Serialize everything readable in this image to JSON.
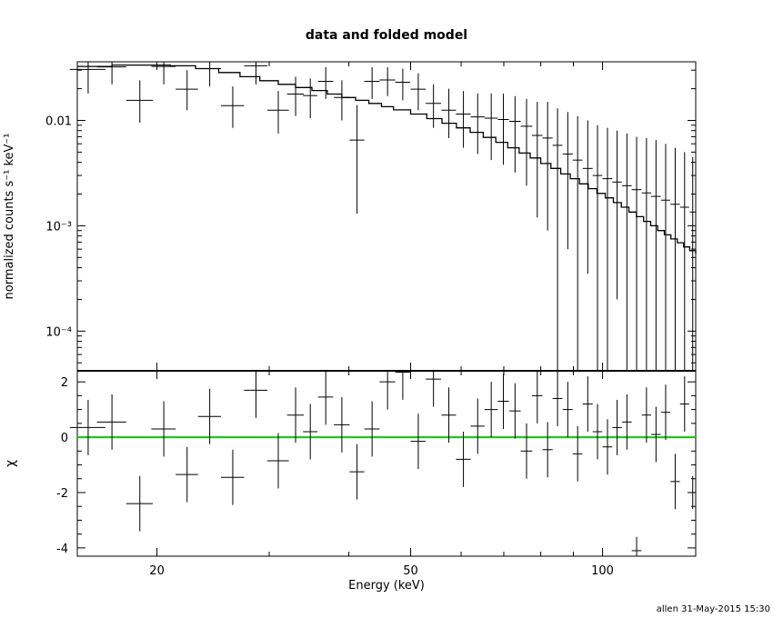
{
  "title": "data and folded model",
  "footer": "allen 31-May-2015 15:30",
  "chart_data": [
    {
      "type": "scatter",
      "panel": "top",
      "title": "data and folded model",
      "xlabel": "Energy (keV)",
      "ylabel": "normalized counts s⁻¹ keV⁻¹",
      "xscale": "log",
      "yscale": "log",
      "xlim": [
        15,
        140
      ],
      "ylim": [
        4.2e-05,
        0.036
      ],
      "yticks": [
        {
          "value": 0.01,
          "label": "0.01"
        },
        {
          "value": 0.001,
          "label": "10⁻³"
        },
        {
          "value": 0.0001,
          "label": "10⁻⁴"
        }
      ],
      "series": [
        {
          "kind": "data",
          "x": [
            15.6,
            17.0,
            18.8,
            20.5,
            22.3,
            24.2,
            26.3,
            28.6,
            31.0,
            33.0,
            34.8,
            36.8,
            39.0,
            41.2,
            43.5,
            46.0,
            48.6,
            51.4,
            54.3,
            57.4,
            60.5,
            63.7,
            66.9,
            69.9,
            72.9,
            76.0,
            79.0,
            82.0,
            85.0,
            88.2,
            91.4,
            94.8,
            98.2,
            101.8,
            105.4,
            109.2,
            113.1,
            117.2,
            121.3,
            125.6,
            130.0,
            134.5,
            138.5
          ],
          "xerr": [
            1.0,
            0.9,
            0.9,
            0.9,
            0.9,
            1.0,
            1.1,
            1.2,
            1.2,
            1.0,
            0.9,
            1.0,
            1.1,
            1.1,
            1.2,
            1.3,
            1.3,
            1.4,
            1.5,
            1.5,
            1.6,
            1.6,
            1.6,
            1.4,
            1.5,
            1.6,
            1.5,
            1.5,
            1.5,
            1.6,
            1.6,
            1.7,
            1.7,
            1.8,
            1.8,
            1.9,
            2.0,
            2.0,
            2.1,
            2.1,
            2.2,
            2.2,
            1.5
          ],
          "y": [
            0.0305,
            0.0322,
            0.0155,
            0.0325,
            0.0198,
            0.031,
            0.0138,
            0.033,
            0.0125,
            0.0178,
            0.0172,
            0.0235,
            0.0165,
            0.0065,
            0.0235,
            0.0242,
            0.023,
            0.0198,
            0.0145,
            0.0125,
            0.0115,
            0.0108,
            0.0105,
            0.0102,
            0.0098,
            0.0088,
            0.0072,
            0.0068,
            0.0058,
            0.0048,
            0.0042,
            0.0035,
            0.003,
            0.0028,
            0.0026,
            0.0024,
            0.0022,
            0.00205,
            0.0019,
            0.00175,
            0.0016,
            0.0015,
            0.00135
          ],
          "ylo": [
            0.018,
            0.022,
            0.0095,
            0.022,
            0.0125,
            0.021,
            0.0085,
            0.022,
            0.0075,
            0.011,
            0.0105,
            0.016,
            0.01,
            0.0013,
            0.016,
            0.017,
            0.0155,
            0.0125,
            0.0085,
            0.0068,
            0.0055,
            0.0048,
            0.0042,
            0.0038,
            0.0032,
            0.0024,
            0.0012,
            0.0009,
            4.2e-05,
            0.0006,
            4.2e-05,
            0.00035,
            4.2e-05,
            4.2e-05,
            0.0002,
            4.2e-05,
            4.2e-05,
            4.2e-05,
            4.2e-05,
            4.2e-05,
            4.2e-05,
            4.2e-05,
            4.2e-05
          ],
          "yhi": [
            0.043,
            0.043,
            0.024,
            0.043,
            0.03,
            0.043,
            0.021,
            0.043,
            0.019,
            0.026,
            0.025,
            0.032,
            0.024,
            0.014,
            0.032,
            0.032,
            0.031,
            0.028,
            0.022,
            0.02,
            0.019,
            0.018,
            0.018,
            0.018,
            0.017,
            0.016,
            0.015,
            0.015,
            0.013,
            0.012,
            0.011,
            0.01,
            0.009,
            0.0085,
            0.008,
            0.0075,
            0.007,
            0.0068,
            0.0065,
            0.006,
            0.0055,
            0.005,
            0.0045
          ]
        },
        {
          "kind": "model",
          "x": [
            15,
            17,
            19,
            21,
            23,
            25,
            27,
            29,
            31,
            33,
            35,
            37,
            39,
            41,
            43,
            45,
            47,
            50,
            53,
            56,
            59,
            62,
            65,
            68,
            71,
            74,
            77,
            80,
            83,
            86,
            89,
            92,
            95,
            98,
            101,
            104,
            107,
            110,
            113,
            116,
            119,
            122,
            125,
            128,
            131,
            134,
            137,
            140
          ],
          "y": [
            0.0325,
            0.0335,
            0.0335,
            0.033,
            0.031,
            0.0285,
            0.026,
            0.0238,
            0.022,
            0.0205,
            0.0192,
            0.0178,
            0.0165,
            0.0155,
            0.0145,
            0.0135,
            0.0126,
            0.0115,
            0.0104,
            0.0094,
            0.0085,
            0.0077,
            0.0069,
            0.0062,
            0.0055,
            0.0049,
            0.0044,
            0.0039,
            0.0035,
            0.0031,
            0.0028,
            0.0025,
            0.00225,
            0.00203,
            0.00184,
            0.00166,
            0.0015,
            0.00135,
            0.00122,
            0.0011,
            0.001,
            0.0009,
            0.00082,
            0.00075,
            0.00069,
            0.00063,
            0.00058,
            0.00054
          ]
        }
      ]
    },
    {
      "type": "scatter",
      "panel": "bottom",
      "xlabel": "Energy (keV)",
      "ylabel": "χ",
      "xscale": "log",
      "xlim": [
        15,
        140
      ],
      "ylim": [
        -4.3,
        2.4
      ],
      "yticks": [
        2,
        0,
        -2,
        -4
      ],
      "xticks": [
        20,
        50,
        100
      ],
      "zero_line_color": "#00cc00",
      "series": [
        {
          "kind": "residuals",
          "x": [
            15.6,
            17.0,
            18.8,
            20.5,
            22.3,
            24.2,
            26.3,
            28.6,
            31.0,
            33.0,
            34.8,
            36.8,
            39.0,
            41.2,
            43.5,
            46.0,
            48.6,
            51.4,
            54.3,
            57.4,
            60.5,
            63.7,
            66.9,
            69.9,
            72.9,
            76.0,
            79.0,
            82.0,
            85.0,
            88.2,
            91.4,
            94.8,
            98.2,
            101.8,
            105.4,
            109.2,
            113.1,
            117.2,
            121.3,
            125.6,
            130.0,
            134.5,
            138.5
          ],
          "xerr": [
            1.0,
            0.9,
            0.9,
            0.9,
            0.9,
            1.0,
            1.1,
            1.2,
            1.2,
            1.0,
            0.9,
            1.0,
            1.1,
            1.1,
            1.2,
            1.3,
            1.3,
            1.4,
            1.5,
            1.5,
            1.6,
            1.6,
            1.6,
            1.4,
            1.5,
            1.6,
            1.5,
            1.5,
            1.5,
            1.6,
            1.6,
            1.7,
            1.7,
            1.8,
            1.8,
            1.9,
            2.0,
            2.0,
            2.1,
            2.1,
            2.2,
            2.2,
            1.5
          ],
          "y": [
            0.35,
            0.55,
            -2.4,
            0.3,
            -1.35,
            0.75,
            -1.45,
            1.7,
            -0.85,
            0.8,
            0.2,
            1.45,
            0.45,
            -1.25,
            0.3,
            2.0,
            2.35,
            -0.15,
            2.1,
            0.8,
            -0.8,
            0.4,
            1.0,
            1.3,
            0.95,
            -0.5,
            1.5,
            -0.45,
            1.4,
            1.0,
            -0.6,
            1.2,
            0.2,
            -0.35,
            0.35,
            0.55,
            -4.1,
            0.8,
            0.1,
            0.9,
            -1.6,
            1.2,
            -2.0
          ],
          "yerr": [
            1,
            1,
            1,
            1,
            1,
            1,
            1,
            1,
            1,
            1,
            1,
            1,
            1,
            1,
            1,
            1,
            1,
            1,
            1,
            1,
            1,
            1,
            1,
            1,
            1,
            1,
            1,
            1,
            1,
            1,
            1,
            1,
            1,
            1,
            1,
            1,
            0.5,
            1,
            1,
            1,
            1,
            1,
            0.6
          ]
        }
      ]
    }
  ]
}
